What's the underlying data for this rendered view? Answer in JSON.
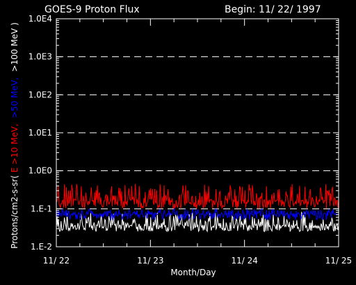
{
  "chart_data": {
    "type": "line",
    "title": "GOES-9 Proton Flux",
    "begin_label": "Begin: 11/ 22/ 1997",
    "xlabel": "Month/Day",
    "ylabel": {
      "prefix": "Protons/cm2-s-sr(",
      "part1": "E >10 MeV,",
      "part2": ">50 MeV,",
      "part3": ">100 MeV )"
    },
    "yscale": "log",
    "ylim": [
      0.01,
      10000
    ],
    "y_ticks": [
      {
        "value": 10000,
        "label": "1.0E4"
      },
      {
        "value": 1000,
        "label": "1.0E3"
      },
      {
        "value": 100,
        "label": "1.0E2"
      },
      {
        "value": 10,
        "label": "1.0E1"
      },
      {
        "value": 1,
        "label": "1.0E0"
      },
      {
        "value": 0.1,
        "label": "1.E-1"
      },
      {
        "value": 0.01,
        "label": "1.E-2"
      }
    ],
    "x_ticks": [
      {
        "value": 0,
        "label": "11/ 22"
      },
      {
        "value": 1,
        "label": "11/ 23"
      },
      {
        "value": 2,
        "label": "11/ 24"
      },
      {
        "value": 3,
        "label": "11/ 25"
      }
    ],
    "xlim": [
      0,
      3
    ],
    "grid": "dashed-horizontal",
    "series": [
      {
        "name": "E >10 MeV",
        "color": "#ff0000",
        "y_low": 0.1,
        "y_high": 0.45,
        "y_typical": 0.16
      },
      {
        "name": ">50 MeV",
        "color": "#0000ff",
        "y_low": 0.05,
        "y_high": 0.1,
        "y_typical": 0.07
      },
      {
        "name": ">100 MeV",
        "color": "#ffffff",
        "y_low": 0.025,
        "y_high": 0.08,
        "y_typical": 0.035
      }
    ]
  },
  "colors": {
    "background": "#000000",
    "axes": "#ffffff",
    "grid": "#ffffff"
  }
}
